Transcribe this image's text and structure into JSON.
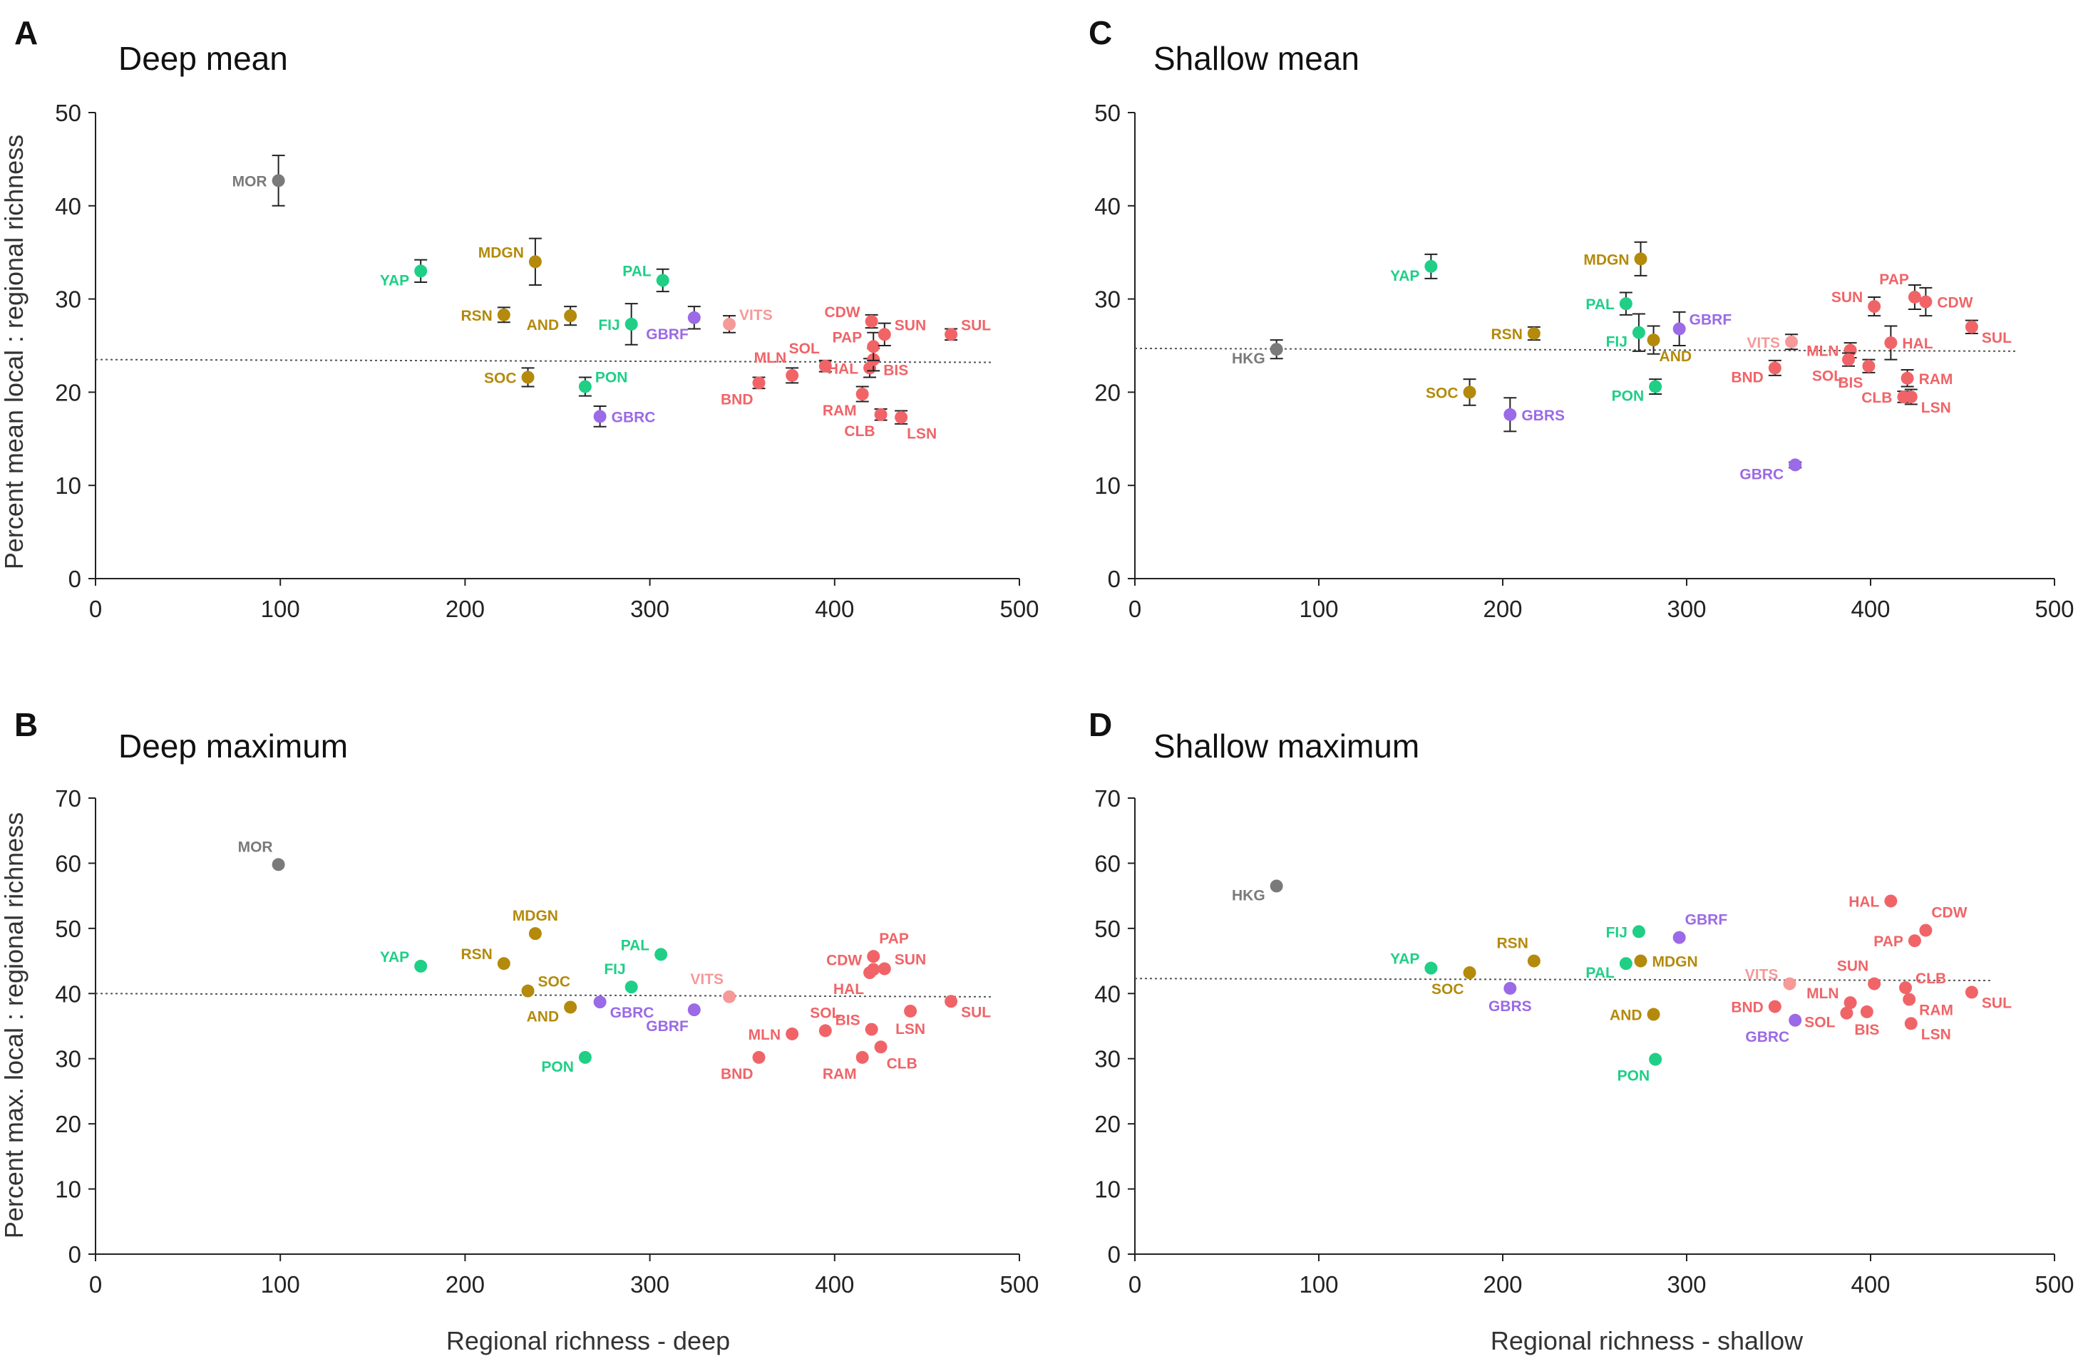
{
  "figure": {
    "xlabel_deep": "Regional richness - deep",
    "xlabel_shallow": "Regional richness - shallow",
    "ylabel_mean": "Percent mean local : regional richness",
    "ylabel_max": "Percent max. local : regional richness"
  },
  "colors": {
    "gray": "#7a7a7a",
    "teal": "#1fcf86",
    "gold": "#b48a0c",
    "purple": "#9b6ae6",
    "red": "#f06468",
    "pink": "#f59a98",
    "axis": "#222222",
    "trend": "#555555"
  },
  "chart_data": [
    {
      "id": "A",
      "letter": "A",
      "type": "scatter",
      "title": "Deep mean",
      "xlabel": "Regional richness - deep",
      "ylabel": "Percent mean local : regional richness",
      "xlim": [
        0,
        500
      ],
      "ylim": [
        0,
        50
      ],
      "xticks": [
        0,
        100,
        200,
        300,
        400,
        500
      ],
      "yticks": [
        0,
        10,
        20,
        30,
        40,
        50
      ],
      "trend": {
        "x": [
          0,
          485
        ],
        "y": [
          23.5,
          23.2
        ]
      },
      "points": [
        {
          "label": "MOR",
          "x": 99,
          "y": 42.7,
          "err": 2.7,
          "color": "gray",
          "lpos": "left"
        },
        {
          "label": "YAP",
          "x": 176,
          "y": 33.0,
          "err": 1.2,
          "color": "teal",
          "lpos": "left-low"
        },
        {
          "label": "MDGN",
          "x": 238,
          "y": 34.0,
          "err": 2.5,
          "color": "gold",
          "lpos": "left-up"
        },
        {
          "label": "RSN",
          "x": 221,
          "y": 28.3,
          "err": 0.8,
          "color": "gold",
          "lpos": "left"
        },
        {
          "label": "AND",
          "x": 257,
          "y": 28.2,
          "err": 1.0,
          "color": "gold",
          "lpos": "left-low"
        },
        {
          "label": "SOC",
          "x": 234,
          "y": 21.6,
          "err": 1.0,
          "color": "gold",
          "lpos": "left"
        },
        {
          "label": "PON",
          "x": 265,
          "y": 20.6,
          "err": 1.0,
          "color": "teal",
          "lpos": "right-up"
        },
        {
          "label": "GBRC",
          "x": 273,
          "y": 17.4,
          "err": 1.1,
          "color": "purple",
          "lpos": "right"
        },
        {
          "label": "FIJ",
          "x": 290,
          "y": 27.3,
          "err": 2.2,
          "color": "teal",
          "lpos": "left"
        },
        {
          "label": "PAL",
          "x": 307,
          "y": 32.0,
          "err": 1.2,
          "color": "teal",
          "lpos": "left-up"
        },
        {
          "label": "GBRF",
          "x": 324,
          "y": 28.0,
          "err": 1.2,
          "color": "purple",
          "lpos": "below-left"
        },
        {
          "label": "VITS",
          "x": 343,
          "y": 27.3,
          "err": 0.9,
          "color": "pink",
          "lpos": "right-up"
        },
        {
          "label": "BND",
          "x": 359,
          "y": 21.0,
          "err": 0.6,
          "color": "red",
          "lpos": "below-left"
        },
        {
          "label": "MLN",
          "x": 377,
          "y": 21.8,
          "err": 0.8,
          "color": "red",
          "lpos": "up-left"
        },
        {
          "label": "SOL",
          "x": 395,
          "y": 22.8,
          "err": 0.6,
          "color": "red",
          "lpos": "up-left"
        },
        {
          "label": "RAM",
          "x": 415,
          "y": 19.8,
          "err": 0.8,
          "color": "red",
          "lpos": "below-left"
        },
        {
          "label": "CLB",
          "x": 425,
          "y": 17.6,
          "err": 0.6,
          "color": "red",
          "lpos": "below-left"
        },
        {
          "label": "LSN",
          "x": 436,
          "y": 17.3,
          "err": 0.7,
          "color": "red",
          "lpos": "below-right"
        },
        {
          "label": "HAL",
          "x": 419,
          "y": 22.6,
          "err": 1.0,
          "color": "red",
          "lpos": "left"
        },
        {
          "label": "BIS",
          "x": 421,
          "y": 23.5,
          "err": 1.2,
          "color": "red",
          "lpos": "right-low"
        },
        {
          "label": "PAP",
          "x": 421,
          "y": 24.9,
          "err": 1.5,
          "color": "red",
          "lpos": "left-up"
        },
        {
          "label": "CDW",
          "x": 420,
          "y": 27.6,
          "err": 0.7,
          "color": "red",
          "lpos": "left-up"
        },
        {
          "label": "SUN",
          "x": 427,
          "y": 26.2,
          "err": 1.2,
          "color": "red",
          "lpos": "right-up"
        },
        {
          "label": "SUL",
          "x": 463,
          "y": 26.2,
          "err": 0.6,
          "color": "red",
          "lpos": "right-up"
        }
      ]
    },
    {
      "id": "B",
      "letter": "B",
      "type": "scatter",
      "title": "Deep maximum",
      "xlabel": "Regional richness - deep",
      "ylabel": "Percent max. local : regional richness",
      "xlim": [
        0,
        500
      ],
      "ylim": [
        0,
        70
      ],
      "xticks": [
        0,
        100,
        200,
        300,
        400,
        500
      ],
      "yticks": [
        0,
        10,
        20,
        30,
        40,
        50,
        60,
        70
      ],
      "trend": {
        "x": [
          0,
          485
        ],
        "y": [
          40.0,
          39.5
        ]
      },
      "points": [
        {
          "label": "MOR",
          "x": 99,
          "y": 59.8,
          "color": "gray",
          "lpos": "up-left"
        },
        {
          "label": "YAP",
          "x": 176,
          "y": 44.2,
          "color": "teal",
          "lpos": "left-up"
        },
        {
          "label": "MDGN",
          "x": 238,
          "y": 49.2,
          "color": "gold",
          "lpos": "up"
        },
        {
          "label": "RSN",
          "x": 221,
          "y": 44.6,
          "color": "gold",
          "lpos": "left-up"
        },
        {
          "label": "SOC",
          "x": 234,
          "y": 40.4,
          "color": "gold",
          "lpos": "right-up"
        },
        {
          "label": "AND",
          "x": 257,
          "y": 37.9,
          "color": "gold",
          "lpos": "left-low"
        },
        {
          "label": "GBRC",
          "x": 273,
          "y": 38.7,
          "color": "purple",
          "lpos": "right-low"
        },
        {
          "label": "PAL",
          "x": 306,
          "y": 46.0,
          "color": "teal",
          "lpos": "left-up"
        },
        {
          "label": "FIJ",
          "x": 290,
          "y": 41.0,
          "color": "teal",
          "lpos": "up-left"
        },
        {
          "label": "PON",
          "x": 265,
          "y": 30.2,
          "color": "teal",
          "lpos": "left-low"
        },
        {
          "label": "GBRF",
          "x": 324,
          "y": 37.5,
          "color": "purple",
          "lpos": "below-left"
        },
        {
          "label": "VITS",
          "x": 343,
          "y": 39.5,
          "color": "pink",
          "lpos": "up-left"
        },
        {
          "label": "BND",
          "x": 359,
          "y": 30.2,
          "color": "red",
          "lpos": "below-left"
        },
        {
          "label": "MLN",
          "x": 377,
          "y": 33.8,
          "color": "red",
          "lpos": "left"
        },
        {
          "label": "SOL",
          "x": 395,
          "y": 34.3,
          "color": "red",
          "lpos": "up"
        },
        {
          "label": "RAM",
          "x": 415,
          "y": 30.2,
          "color": "red",
          "lpos": "below-left"
        },
        {
          "label": "CLB",
          "x": 425,
          "y": 31.8,
          "color": "red",
          "lpos": "below-right"
        },
        {
          "label": "BIS",
          "x": 420,
          "y": 34.5,
          "color": "red",
          "lpos": "left-up"
        },
        {
          "label": "LSN",
          "x": 441,
          "y": 37.3,
          "color": "red",
          "lpos": "below"
        },
        {
          "label": "HAL",
          "x": 419,
          "y": 43.2,
          "color": "red",
          "lpos": "below-left"
        },
        {
          "label": "CDW",
          "x": 421,
          "y": 43.7,
          "color": "red",
          "lpos": "left-up"
        },
        {
          "label": "PAP",
          "x": 421,
          "y": 45.7,
          "color": "red",
          "lpos": "up-right"
        },
        {
          "label": "SUN",
          "x": 427,
          "y": 43.8,
          "color": "red",
          "lpos": "right-up"
        },
        {
          "label": "SUL",
          "x": 463,
          "y": 38.8,
          "color": "red",
          "lpos": "right-low"
        }
      ]
    },
    {
      "id": "C",
      "letter": "C",
      "type": "scatter",
      "title": "Shallow mean",
      "xlabel": "Regional richness - shallow",
      "ylabel": "",
      "xlim": [
        0,
        500
      ],
      "ylim": [
        0,
        50
      ],
      "xticks": [
        0,
        100,
        200,
        300,
        400,
        500
      ],
      "yticks": [
        0,
        10,
        20,
        30,
        40,
        50
      ],
      "trend": {
        "x": [
          0,
          480
        ],
        "y": [
          24.7,
          24.4
        ]
      },
      "points": [
        {
          "label": "HKG",
          "x": 77,
          "y": 24.6,
          "err": 1.0,
          "color": "gray",
          "lpos": "left-low"
        },
        {
          "label": "YAP",
          "x": 161,
          "y": 33.5,
          "err": 1.3,
          "color": "teal",
          "lpos": "left-low"
        },
        {
          "label": "SOC",
          "x": 182,
          "y": 20.0,
          "err": 1.4,
          "color": "gold",
          "lpos": "left"
        },
        {
          "label": "GBRS",
          "x": 204,
          "y": 17.6,
          "err": 1.8,
          "color": "purple",
          "lpos": "right"
        },
        {
          "label": "RSN",
          "x": 217,
          "y": 26.3,
          "err": 0.7,
          "color": "gold",
          "lpos": "left"
        },
        {
          "label": "PAL",
          "x": 267,
          "y": 29.5,
          "err": 1.2,
          "color": "teal",
          "lpos": "left"
        },
        {
          "label": "FIJ",
          "x": 274,
          "y": 26.4,
          "err": 2.0,
          "color": "teal",
          "lpos": "left-low"
        },
        {
          "label": "MDGN",
          "x": 275,
          "y": 34.3,
          "err": 1.8,
          "color": "gold",
          "lpos": "left"
        },
        {
          "label": "AND",
          "x": 282,
          "y": 25.6,
          "err": 1.5,
          "color": "gold",
          "lpos": "below-right"
        },
        {
          "label": "GBRF",
          "x": 296,
          "y": 26.8,
          "err": 1.8,
          "color": "purple",
          "lpos": "right-up"
        },
        {
          "label": "PON",
          "x": 283,
          "y": 20.6,
          "err": 0.8,
          "color": "teal",
          "lpos": "left-low"
        },
        {
          "label": "VITS",
          "x": 357,
          "y": 25.4,
          "err": 0.8,
          "color": "pink",
          "lpos": "left"
        },
        {
          "label": "BND",
          "x": 348,
          "y": 22.6,
          "err": 0.8,
          "color": "red",
          "lpos": "left-low"
        },
        {
          "label": "GBRC",
          "x": 359,
          "y": 12.2,
          "err": 0.3,
          "color": "purple",
          "lpos": "left-low"
        },
        {
          "label": "MLN",
          "x": 389,
          "y": 24.5,
          "err": 0.8,
          "color": "red",
          "lpos": "left"
        },
        {
          "label": "SOL",
          "x": 388,
          "y": 23.5,
          "err": 0.7,
          "color": "red",
          "lpos": "below-left"
        },
        {
          "label": "BIS",
          "x": 399,
          "y": 22.8,
          "err": 0.7,
          "color": "red",
          "lpos": "below-left"
        },
        {
          "label": "HAL",
          "x": 411,
          "y": 25.3,
          "err": 1.8,
          "color": "red",
          "lpos": "right"
        },
        {
          "label": "RAM",
          "x": 420,
          "y": 21.5,
          "err": 0.9,
          "color": "red",
          "lpos": "right"
        },
        {
          "label": "CLB",
          "x": 418,
          "y": 19.5,
          "err": 0.6,
          "color": "red",
          "lpos": "left"
        },
        {
          "label": "LSN",
          "x": 422,
          "y": 19.5,
          "err": 0.8,
          "color": "red",
          "lpos": "right-low"
        },
        {
          "label": "SUN",
          "x": 402,
          "y": 29.2,
          "err": 1.0,
          "color": "red",
          "lpos": "left-up"
        },
        {
          "label": "PAP",
          "x": 424,
          "y": 30.2,
          "err": 1.3,
          "color": "red",
          "lpos": "up-left"
        },
        {
          "label": "CDW",
          "x": 430,
          "y": 29.7,
          "err": 1.5,
          "color": "red",
          "lpos": "right"
        },
        {
          "label": "SUL",
          "x": 455,
          "y": 27.0,
          "err": 0.7,
          "color": "red",
          "lpos": "right-low"
        }
      ]
    },
    {
      "id": "D",
      "letter": "D",
      "type": "scatter",
      "title": "Shallow maximum",
      "xlabel": "Regional richness - shallow",
      "ylabel": "",
      "xlim": [
        0,
        500
      ],
      "ylim": [
        0,
        70
      ],
      "xticks": [
        0,
        100,
        200,
        300,
        400,
        500
      ],
      "yticks": [
        0,
        10,
        20,
        30,
        40,
        50,
        60,
        70
      ],
      "trend": {
        "x": [
          0,
          465
        ],
        "y": [
          42.3,
          42.0
        ]
      },
      "points": [
        {
          "label": "HKG",
          "x": 77,
          "y": 56.5,
          "color": "gray",
          "lpos": "left-low"
        },
        {
          "label": "YAP",
          "x": 161,
          "y": 43.9,
          "color": "teal",
          "lpos": "left-up"
        },
        {
          "label": "SOC",
          "x": 182,
          "y": 43.2,
          "color": "gold",
          "lpos": "below-left"
        },
        {
          "label": "GBRS",
          "x": 204,
          "y": 40.8,
          "color": "purple",
          "lpos": "below"
        },
        {
          "label": "RSN",
          "x": 217,
          "y": 45.0,
          "color": "gold",
          "lpos": "up-left"
        },
        {
          "label": "FIJ",
          "x": 274,
          "y": 49.5,
          "color": "teal",
          "lpos": "left"
        },
        {
          "label": "GBRF",
          "x": 296,
          "y": 48.6,
          "color": "purple",
          "lpos": "up-right"
        },
        {
          "label": "PAL",
          "x": 267,
          "y": 44.6,
          "color": "teal",
          "lpos": "left-low"
        },
        {
          "label": "MDGN",
          "x": 275,
          "y": 45.0,
          "color": "gold",
          "lpos": "right"
        },
        {
          "label": "AND",
          "x": 282,
          "y": 36.8,
          "color": "gold",
          "lpos": "left"
        },
        {
          "label": "PON",
          "x": 283,
          "y": 29.9,
          "color": "teal",
          "lpos": "below-left"
        },
        {
          "label": "VITS",
          "x": 356,
          "y": 41.5,
          "color": "pink",
          "lpos": "left-up"
        },
        {
          "label": "BND",
          "x": 348,
          "y": 38.0,
          "color": "red",
          "lpos": "left"
        },
        {
          "label": "GBRC",
          "x": 359,
          "y": 35.9,
          "color": "purple",
          "lpos": "below-left"
        },
        {
          "label": "MLN",
          "x": 389,
          "y": 38.6,
          "color": "red",
          "lpos": "left-up"
        },
        {
          "label": "SOL",
          "x": 387,
          "y": 37.0,
          "color": "red",
          "lpos": "left-low"
        },
        {
          "label": "BIS",
          "x": 398,
          "y": 37.2,
          "color": "red",
          "lpos": "below"
        },
        {
          "label": "SUN",
          "x": 402,
          "y": 41.5,
          "color": "red",
          "lpos": "up-left"
        },
        {
          "label": "CLB",
          "x": 419,
          "y": 40.9,
          "color": "red",
          "lpos": "right-up"
        },
        {
          "label": "RAM",
          "x": 421,
          "y": 39.1,
          "color": "red",
          "lpos": "right-low"
        },
        {
          "label": "LSN",
          "x": 422,
          "y": 35.4,
          "color": "red",
          "lpos": "right-low"
        },
        {
          "label": "HAL",
          "x": 411,
          "y": 54.2,
          "color": "red",
          "lpos": "left"
        },
        {
          "label": "PAP",
          "x": 424,
          "y": 48.1,
          "color": "red",
          "lpos": "left"
        },
        {
          "label": "CDW",
          "x": 430,
          "y": 49.7,
          "color": "red",
          "lpos": "up-right"
        },
        {
          "label": "SUL",
          "x": 455,
          "y": 40.2,
          "color": "red",
          "lpos": "right-low"
        }
      ]
    }
  ]
}
